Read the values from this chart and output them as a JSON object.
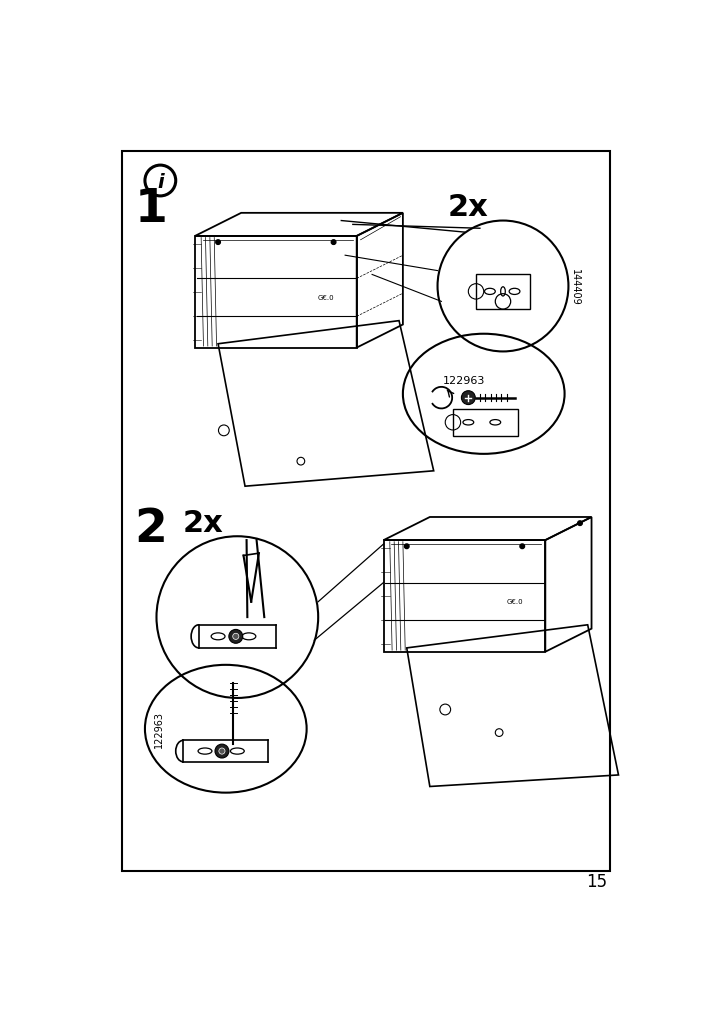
{
  "page_number": "15",
  "bg_color": "#ffffff",
  "border_color": "#000000",
  "line_color": "#000000",
  "step1_label": "1",
  "step2_label": "2",
  "info_icon_text": "i",
  "2x_top": "2x",
  "2x_bottom": "2x",
  "part_144409": "144409",
  "part_122963_1": "122963",
  "part_122963_2": "122963"
}
